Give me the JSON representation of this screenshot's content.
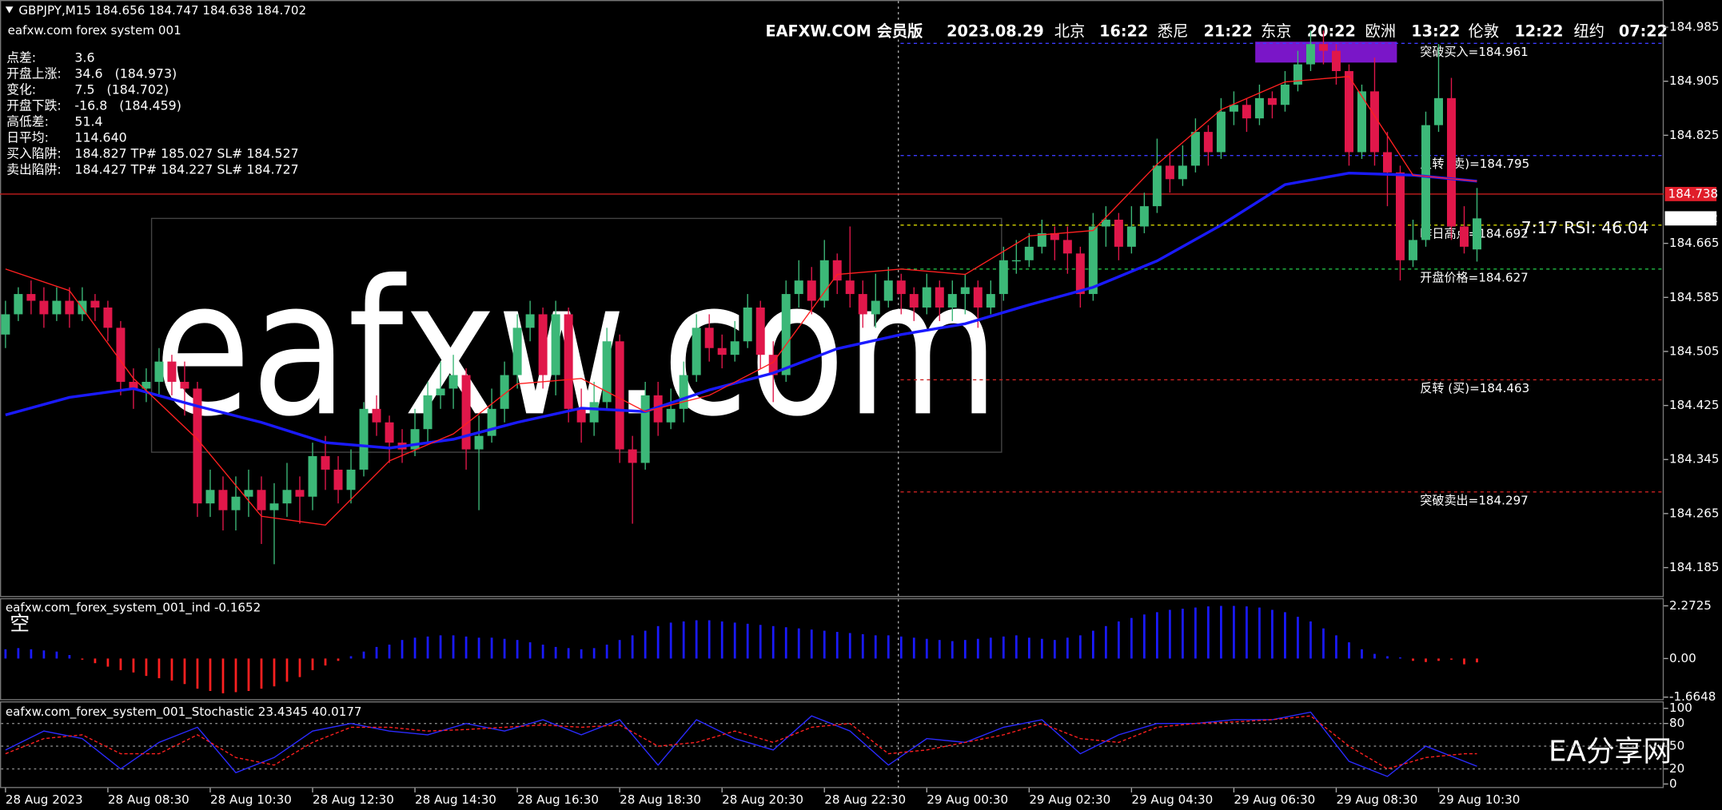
{
  "chart_data": [
    {
      "type": "candlestick",
      "title": "GBPJPY,M15  184.656 184.747 184.638 184.702",
      "subtitle": "eafxw.com forex system 001",
      "watermark": "eafxw.com",
      "logo": "EA分享网",
      "header_items": [
        {
          "text": "EAFXW.COM 会员版",
          "color": "#1ed47c"
        },
        {
          "text": "2023.08.29",
          "color": "#1ed47c"
        },
        {
          "text": "北京",
          "color": "#ffffff"
        },
        {
          "text": "16:22",
          "color": "#ffffff"
        },
        {
          "text": "悉尼",
          "color": "#ffffff"
        },
        {
          "text": "21:22",
          "color": "#ffffff"
        },
        {
          "text": "东京",
          "color": "#ffffff"
        },
        {
          "text": "20:22",
          "color": "#ffffff"
        },
        {
          "text": "欧洲",
          "color": "#1ed47c"
        },
        {
          "text": "13:22",
          "color": "#1ed47c"
        },
        {
          "text": "伦敦",
          "color": "#ffcc00"
        },
        {
          "text": "12:22",
          "color": "#1ed47c"
        },
        {
          "text": "纽约",
          "color": "#ffffff"
        },
        {
          "text": "07:22",
          "color": "#ffffff"
        }
      ],
      "info_rows": [
        {
          "label": "点差:",
          "value": "3.6",
          "color": "#ffd700"
        },
        {
          "label": "开盘上涨:",
          "value": "34.6   (184.973)",
          "color": "#ffd700"
        },
        {
          "label": "变化:",
          "value": "7.5   (184.702)",
          "color": "#22cc55"
        },
        {
          "label": "开盘下跌:",
          "value": "-16.8   (184.459)",
          "color": "#ffd700"
        },
        {
          "label": "高低差:",
          "value": "51.4",
          "color": "#ffd700"
        },
        {
          "label": "日平均:",
          "value": "114.640",
          "color": "#ffd700"
        },
        {
          "label": "买入陷阱:",
          "value": "184.827 TP# 185.027 SL# 184.527",
          "color": "#ffd700"
        },
        {
          "label": "卖出陷阱:",
          "value": "184.427 TP# 184.227 SL# 184.727",
          "color": "#ffd700"
        }
      ],
      "time_left": "7:17",
      "rsi_text": "RSI: 46.04",
      "up_color": "#3cb878",
      "down_color": "#e0174a",
      "xlim": [
        -0.43,
        129.6
      ],
      "ylim": [
        184.143,
        185.022
      ],
      "yticks": [
        184.985,
        184.905,
        184.825,
        184.665,
        184.585,
        184.505,
        184.425,
        184.345,
        184.265,
        184.185
      ],
      "open": [
        184.53,
        184.56,
        184.59,
        184.58,
        184.56,
        184.58,
        184.56,
        184.58,
        184.57,
        184.54,
        184.46,
        184.45,
        184.46,
        184.49,
        184.46,
        184.45,
        184.28,
        184.3,
        184.27,
        184.29,
        184.3,
        184.27,
        184.28,
        184.3,
        184.29,
        184.35,
        184.33,
        184.3,
        184.33,
        184.42,
        184.4,
        184.37,
        184.36,
        184.39,
        184.44,
        184.45,
        184.47,
        184.36,
        184.38,
        184.42,
        184.47,
        184.54,
        184.56,
        184.47,
        184.56,
        184.42,
        184.4,
        184.43,
        184.52,
        184.36,
        184.34,
        184.44,
        184.4,
        184.42,
        184.47,
        184.54,
        184.51,
        184.5,
        184.52,
        184.57,
        184.5,
        184.47,
        184.59,
        184.61,
        184.58,
        184.64,
        184.61,
        184.59,
        184.56,
        184.58,
        184.61,
        184.59,
        184.57,
        184.6,
        184.57,
        184.59,
        184.6,
        184.57,
        184.59,
        184.64,
        184.64,
        184.66,
        184.68,
        184.67,
        184.65,
        184.59,
        184.69,
        184.7,
        184.66,
        184.69,
        184.72,
        184.78,
        184.76,
        184.78,
        184.83,
        184.8,
        184.86,
        184.87,
        184.85,
        184.88,
        184.87,
        184.9,
        184.93,
        184.96,
        184.95,
        184.92,
        184.8,
        184.89,
        184.8,
        184.77,
        184.64,
        184.67,
        184.84,
        184.88,
        184.69,
        184.656
      ],
      "high": [
        184.58,
        184.6,
        184.61,
        184.6,
        184.6,
        184.6,
        184.6,
        184.59,
        184.58,
        184.55,
        184.48,
        184.48,
        184.51,
        184.5,
        184.49,
        184.46,
        184.33,
        184.32,
        184.32,
        184.33,
        184.32,
        184.31,
        184.34,
        184.32,
        184.37,
        184.38,
        184.35,
        184.36,
        184.43,
        184.44,
        184.41,
        184.39,
        184.42,
        184.46,
        184.49,
        184.5,
        184.48,
        184.41,
        184.45,
        184.49,
        184.56,
        184.58,
        184.57,
        184.58,
        184.57,
        184.45,
        184.46,
        184.54,
        184.53,
        184.38,
        184.46,
        184.46,
        184.45,
        184.49,
        184.56,
        184.56,
        184.53,
        184.55,
        184.59,
        184.58,
        184.52,
        184.61,
        184.64,
        184.63,
        184.67,
        184.65,
        184.69,
        184.61,
        184.62,
        184.63,
        184.62,
        184.6,
        184.62,
        184.61,
        184.61,
        184.62,
        184.61,
        184.61,
        184.66,
        184.67,
        184.68,
        184.7,
        184.69,
        184.69,
        184.66,
        184.71,
        184.72,
        184.71,
        184.72,
        184.74,
        184.82,
        184.8,
        184.81,
        184.85,
        184.84,
        184.88,
        184.89,
        184.88,
        184.9,
        184.89,
        184.92,
        184.95,
        184.98,
        184.98,
        184.96,
        184.93,
        184.9,
        184.94,
        184.83,
        184.78,
        184.7,
        184.86,
        184.96,
        184.91,
        184.72,
        184.747
      ],
      "low": [
        184.51,
        184.55,
        184.56,
        184.54,
        184.55,
        184.54,
        184.55,
        184.55,
        184.52,
        184.44,
        184.42,
        184.43,
        184.44,
        184.44,
        184.41,
        184.26,
        184.26,
        184.24,
        184.24,
        184.26,
        184.22,
        184.19,
        184.26,
        184.25,
        184.27,
        184.3,
        184.28,
        184.28,
        184.32,
        184.38,
        184.34,
        184.34,
        184.35,
        184.37,
        184.42,
        184.42,
        184.33,
        184.27,
        184.37,
        184.4,
        184.45,
        184.52,
        184.45,
        184.44,
        184.4,
        184.37,
        184.38,
        184.42,
        184.34,
        184.25,
        184.33,
        184.38,
        184.39,
        184.4,
        184.46,
        184.49,
        184.48,
        184.49,
        184.51,
        184.48,
        184.43,
        184.46,
        184.57,
        184.56,
        184.57,
        184.59,
        184.57,
        184.54,
        184.54,
        184.57,
        184.56,
        184.55,
        184.56,
        184.55,
        184.55,
        184.56,
        184.54,
        184.56,
        184.58,
        184.62,
        184.63,
        184.65,
        184.64,
        184.62,
        184.57,
        184.58,
        184.66,
        184.64,
        184.65,
        184.68,
        184.71,
        184.74,
        184.75,
        184.77,
        184.78,
        184.79,
        184.84,
        184.83,
        184.84,
        184.85,
        184.86,
        184.89,
        184.92,
        184.93,
        184.9,
        184.78,
        184.79,
        184.78,
        184.72,
        184.61,
        184.63,
        184.66,
        184.83,
        184.67,
        184.65,
        184.638
      ],
      "close": [
        184.56,
        184.59,
        184.58,
        184.56,
        184.58,
        184.56,
        184.58,
        184.57,
        184.54,
        184.46,
        184.45,
        184.46,
        184.49,
        184.46,
        184.45,
        184.28,
        184.3,
        184.27,
        184.29,
        184.3,
        184.27,
        184.28,
        184.3,
        184.29,
        184.35,
        184.33,
        184.3,
        184.33,
        184.42,
        184.4,
        184.37,
        184.36,
        184.39,
        184.44,
        184.45,
        184.47,
        184.36,
        184.38,
        184.42,
        184.47,
        184.54,
        184.56,
        184.47,
        184.56,
        184.42,
        184.4,
        184.43,
        184.52,
        184.36,
        184.34,
        184.44,
        184.4,
        184.42,
        184.47,
        184.54,
        184.51,
        184.5,
        184.52,
        184.57,
        184.5,
        184.47,
        184.59,
        184.61,
        184.58,
        184.64,
        184.61,
        184.59,
        184.56,
        184.58,
        184.61,
        184.59,
        184.57,
        184.6,
        184.57,
        184.59,
        184.6,
        184.57,
        184.59,
        184.64,
        184.64,
        184.66,
        184.68,
        184.67,
        184.65,
        184.59,
        184.69,
        184.7,
        184.66,
        184.69,
        184.72,
        184.78,
        184.76,
        184.78,
        184.83,
        184.8,
        184.86,
        184.87,
        184.85,
        184.88,
        184.87,
        184.9,
        184.93,
        184.96,
        184.95,
        184.92,
        184.8,
        184.89,
        184.8,
        184.77,
        184.64,
        184.67,
        184.84,
        184.88,
        184.69,
        184.66,
        184.702
      ],
      "lines": [
        {
          "color": "#1a1aff",
          "width": 2.5,
          "x": [
            0,
            5,
            10,
            15,
            20,
            25,
            30,
            35,
            40,
            45,
            50,
            55,
            60,
            65,
            70,
            75,
            80,
            85,
            90,
            95,
            100,
            105,
            110,
            115
          ],
          "values": [
            184.411,
            184.437,
            184.45,
            184.424,
            184.4,
            184.37,
            184.362,
            184.375,
            184.4,
            184.421,
            184.416,
            184.448,
            184.473,
            184.509,
            184.53,
            184.546,
            184.574,
            184.6,
            184.639,
            184.692,
            184.752,
            184.769,
            184.766,
            184.757
          ]
        },
        {
          "color": "#ff2020",
          "width": 1,
          "x": [
            0,
            5,
            10,
            15,
            20,
            25,
            30,
            35,
            40,
            45,
            50,
            55,
            60,
            65,
            70,
            75,
            80,
            85,
            90,
            95,
            100,
            105,
            110,
            115
          ],
          "values": [
            184.627,
            184.595,
            184.465,
            184.375,
            184.261,
            184.248,
            184.343,
            184.383,
            184.457,
            184.465,
            184.416,
            184.44,
            184.489,
            184.619,
            184.627,
            184.619,
            184.676,
            184.684,
            184.782,
            184.863,
            184.904,
            184.912,
            184.766,
            184.757
          ]
        }
      ],
      "levels": [
        {
          "value": 184.961,
          "label": "突破买入=184.961",
          "color": "#3b3bff",
          "label_color": "#ffd700"
        },
        {
          "value": 184.795,
          "label": "反转 (卖)=184.795",
          "color": "#3b3bff",
          "label_color": "#ffd700"
        },
        {
          "value": 184.692,
          "label": "昨日高点=184.692",
          "color": "#d6d600",
          "label_color": "#ffd700"
        },
        {
          "value": 184.627,
          "label": "开盘价格=184.627",
          "color": "#22bb44",
          "label_color": "#22dd55"
        },
        {
          "value": 184.463,
          "label": "反转 (买)=184.463",
          "color": "#cc2222",
          "label_color": "#ffd700"
        },
        {
          "value": 184.297,
          "label": "突破卖出=184.297",
          "color": "#cc2222",
          "label_color": "#ffd700"
        }
      ],
      "bid_line": 184.738,
      "price_line": 184.702
    },
    {
      "type": "bar",
      "title": "eafxw.com_forex_system_001_ind -0.1652",
      "signal": "空",
      "up_color": "#1a1aff",
      "down_color": "#ff2020",
      "ylim": [
        -1.752,
        2.604
      ],
      "yticks": [
        2.2725,
        {
          "value": 0,
          "label": "0.00"
        },
        -1.6648
      ],
      "values": [
        0.4,
        0.45,
        0.4,
        0.35,
        0.3,
        0.15,
        -0.05,
        -0.2,
        -0.35,
        -0.5,
        -0.6,
        -0.75,
        -0.85,
        -0.95,
        -1.1,
        -1.3,
        -1.4,
        -1.5,
        -1.45,
        -1.4,
        -1.3,
        -1.2,
        -1.0,
        -0.8,
        -0.5,
        -0.3,
        -0.1,
        0.1,
        0.3,
        0.5,
        0.6,
        0.8,
        0.9,
        0.95,
        1.0,
        1.0,
        0.95,
        0.9,
        0.9,
        0.85,
        0.8,
        0.7,
        0.6,
        0.5,
        0.45,
        0.4,
        0.45,
        0.6,
        0.8,
        1.0,
        1.2,
        1.4,
        1.55,
        1.6,
        1.65,
        1.65,
        1.6,
        1.55,
        1.5,
        1.45,
        1.4,
        1.35,
        1.3,
        1.25,
        1.2,
        1.15,
        1.1,
        1.05,
        1.0,
        1.0,
        0.95,
        0.9,
        0.85,
        0.8,
        0.75,
        0.8,
        0.85,
        0.9,
        0.95,
        1.0,
        0.9,
        0.85,
        0.8,
        0.9,
        1.0,
        1.2,
        1.4,
        1.6,
        1.75,
        1.9,
        2.0,
        2.1,
        2.15,
        2.2,
        2.25,
        2.27,
        2.27,
        2.25,
        2.2,
        2.1,
        2.0,
        1.8,
        1.6,
        1.3,
        1.0,
        0.7,
        0.4,
        0.2,
        0.1,
        0.05,
        -0.1,
        -0.15,
        -0.1,
        -0.05,
        -0.25,
        -0.1652
      ]
    },
    {
      "type": "line",
      "title": "eafxw.com_forex_system_001_Stochastic 23.4345 40.0177",
      "ylim": [
        -3.9,
        107.8
      ],
      "yticks": [
        100,
        80,
        50,
        20,
        0
      ],
      "levels": [
        80,
        50,
        20
      ],
      "x": [
        0,
        3,
        6,
        9,
        12,
        15,
        18,
        21,
        24,
        27,
        30,
        33,
        36,
        39,
        42,
        45,
        48,
        51,
        54,
        57,
        60,
        63,
        66,
        69,
        72,
        75,
        78,
        81,
        84,
        87,
        90,
        93,
        96,
        99,
        102,
        105,
        108,
        111,
        114,
        115
      ],
      "series": [
        {
          "color": "#2b2bff",
          "dashed": false,
          "values": [
            45,
            70,
            60,
            20,
            55,
            75,
            15,
            35,
            70,
            80,
            70,
            65,
            80,
            70,
            85,
            65,
            85,
            25,
            85,
            60,
            45,
            90,
            70,
            25,
            60,
            55,
            75,
            85,
            40,
            65,
            80,
            80,
            85,
            85,
            95,
            30,
            10,
            50,
            30,
            23.4345
          ]
        },
        {
          "color": "#ff2020",
          "dashed": true,
          "values": [
            40,
            60,
            65,
            40,
            40,
            65,
            35,
            25,
            55,
            75,
            75,
            70,
            72,
            75,
            78,
            75,
            78,
            50,
            55,
            70,
            55,
            75,
            80,
            40,
            45,
            55,
            65,
            80,
            60,
            55,
            75,
            80,
            82,
            85,
            90,
            50,
            20,
            35,
            40,
            40.0177
          ]
        }
      ],
      "xticks": [
        {
          "value": 0,
          "label": "28 Aug 2023"
        },
        {
          "value": 8,
          "label": "28 Aug 08:30"
        },
        {
          "value": 16,
          "label": "28 Aug 10:30"
        },
        {
          "value": 24,
          "label": "28 Aug 12:30"
        },
        {
          "value": 32,
          "label": "28 Aug 14:30"
        },
        {
          "value": 40,
          "label": "28 Aug 16:30"
        },
        {
          "value": 48,
          "label": "28 Aug 18:30"
        },
        {
          "value": 56,
          "label": "28 Aug 20:30"
        },
        {
          "value": 64,
          "label": "28 Aug 22:30"
        },
        {
          "value": 72,
          "label": "29 Aug 00:30"
        },
        {
          "value": 80,
          "label": "29 Aug 02:30"
        },
        {
          "value": 88,
          "label": "29 Aug 04:30"
        },
        {
          "value": 96,
          "label": "29 Aug 06:30"
        },
        {
          "value": 104,
          "label": "29 Aug 08:30"
        },
        {
          "value": 112,
          "label": "29 Aug 10:30"
        }
      ]
    }
  ]
}
